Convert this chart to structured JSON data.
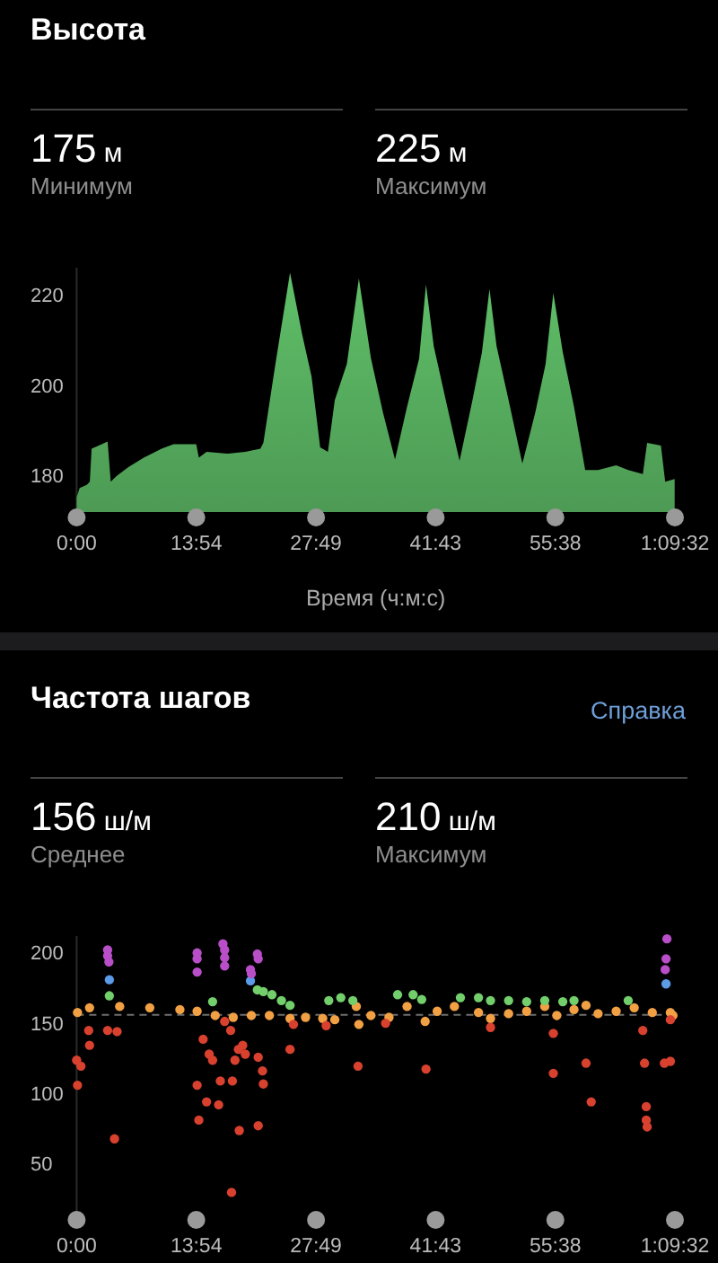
{
  "chart_data": [
    {
      "type": "area",
      "title": "Высота",
      "xlabel": "Время (ч:м:с)",
      "annotations": [
        "175 м",
        "Минимум",
        "225 м",
        "Максимум"
      ],
      "xlim": [
        0,
        69.53
      ],
      "xticks": [
        {
          "value": 0,
          "label": "0:00"
        },
        {
          "value": 13.9,
          "label": "13:54"
        },
        {
          "value": 27.82,
          "label": "27:49"
        },
        {
          "value": 41.72,
          "label": "41:43"
        },
        {
          "value": 55.63,
          "label": "55:38"
        },
        {
          "value": 69.53,
          "label": "1:09:32"
        }
      ],
      "ylim": [
        172,
        226
      ],
      "yticks": [
        180,
        200,
        220
      ],
      "grid": false,
      "series": [
        {
          "color": "#5fbf68",
          "x": [
            0,
            0.35,
            1.18,
            1.53,
            1.74,
            2.92,
            3.6,
            3.96,
            4.66,
            6.05,
            7.8,
            9.87,
            11.26,
            13.9,
            14.2,
            15.1,
            17.5,
            19.6,
            21.35,
            21.7,
            23.1,
            24.8,
            26.2,
            27.3,
            28.3,
            29.2,
            30.0,
            31.4,
            32.8,
            34.2,
            35.6,
            37.0,
            38.4,
            39.8,
            40.6,
            41.5,
            42.9,
            44.5,
            46.0,
            47.1,
            47.98,
            48.8,
            50.2,
            51.8,
            53.3,
            54.5,
            55.4,
            56.5,
            57.8,
            59.1,
            60.6,
            62.7,
            64.1,
            65.8,
            66.3,
            67.9,
            68.4,
            69.5
          ],
          "values": [
            175.3,
            177.3,
            178,
            178.7,
            186,
            187,
            187.6,
            178.7,
            180,
            182,
            184,
            186,
            187,
            187,
            184,
            185.3,
            184.9,
            185.3,
            186,
            187.3,
            204.7,
            224.9,
            211.3,
            202,
            186.3,
            185.3,
            196.7,
            204.7,
            223.6,
            206,
            194,
            183.6,
            195.3,
            205.9,
            222.3,
            208.7,
            196.7,
            183.3,
            196.7,
            207.3,
            221.3,
            208.7,
            196.7,
            182.7,
            194,
            204.7,
            220.4,
            207.3,
            195.3,
            181.3,
            181.3,
            182.3,
            181.3,
            180.4,
            187.3,
            186.7,
            178.7,
            179.3
          ]
        }
      ]
    },
    {
      "type": "scatter",
      "title": "Частота шагов",
      "annotations": [
        "156 ш/м",
        "Среднее",
        "210 ш/м",
        "Максимум",
        "Справка"
      ],
      "xlim": [
        0,
        69.53
      ],
      "xticks": [
        {
          "value": 0,
          "label": "0:00"
        },
        {
          "value": 13.9,
          "label": "13:54"
        },
        {
          "value": 27.82,
          "label": "27:49"
        },
        {
          "value": 41.72,
          "label": "41:43"
        },
        {
          "value": 55.63,
          "label": "55:38"
        },
        {
          "value": 69.53,
          "label": "1:09:32"
        }
      ],
      "ylim": [
        14,
        212
      ],
      "yticks": [
        50,
        100,
        150,
        200
      ],
      "grid": false,
      "marker": "circle",
      "ref_lines": [
        {
          "axis": "y",
          "value": 156,
          "color": "#6e6e6e",
          "line_style": "dashed"
        }
      ],
      "series": [
        {
          "color": "#f2a044",
          "x": [
            0.1,
            1.5,
            5.0,
            8.5,
            12.0,
            14.0,
            16.1,
            18.2,
            20.3,
            22.4,
            24.8,
            26.6,
            28.6,
            30.0,
            32.5,
            32.8,
            34.2,
            36.3,
            38.4,
            40.5,
            41.9,
            43.9,
            46.7,
            48.1,
            50.2,
            52.3,
            54.4,
            55.8,
            57.8,
            59.2,
            60.6,
            62.7,
            64.8,
            66.9,
            69.0,
            69.3
          ],
          "values": [
            157.6,
            161,
            161.9,
            161,
            159.7,
            158.5,
            155.5,
            154.2,
            155.5,
            155.5,
            153.4,
            154.2,
            153.4,
            152.5,
            161.9,
            149.2,
            155.5,
            154.2,
            161.9,
            151.3,
            158.5,
            161.9,
            157.6,
            153.4,
            156.8,
            158.5,
            161.9,
            155.5,
            159.7,
            162.7,
            156.8,
            158.5,
            161,
            157.6,
            157.6,
            155.5
          ]
        },
        {
          "color": "#d9412f",
          "x": [
            0,
            0.1,
            0.5,
            1.4,
            1.5,
            3.6,
            4.4,
            4.7,
            14.0,
            14.2,
            14.7,
            15.1,
            15.4,
            15.8,
            16.5,
            16.7,
            17.2,
            17.9,
            18.1,
            18.0,
            18.4,
            18.8,
            18.9,
            19.3,
            19.6,
            21.1,
            21.1,
            21.6,
            21.7,
            24.8,
            25.2,
            29.0,
            32.7,
            35.9,
            40.6,
            48.1,
            55.4,
            55.4,
            59.2,
            59.8,
            65.8,
            66.0,
            66.2,
            66.2,
            66.3,
            68.3,
            69.0,
            69.0
          ],
          "values": [
            123.7,
            105.9,
            119.5,
            144.9,
            134.3,
            144.9,
            67.8,
            144.1,
            105.9,
            81.1,
            138.6,
            94.1,
            128,
            123.7,
            92,
            108.9,
            151.3,
            144.9,
            108.9,
            29.7,
            123.7,
            131.4,
            73.7,
            134.3,
            128,
            125.8,
            77.1,
            116.1,
            106.8,
            131.4,
            149.2,
            148.3,
            119.5,
            150,
            117.4,
            147,
            142.8,
            114.4,
            121.6,
            94.1,
            144.9,
            121.6,
            90.7,
            81.1,
            76.3,
            121.6,
            122.9,
            152.5
          ]
        },
        {
          "color": "#72cf6c",
          "x": [
            3.8,
            15.8,
            21.0,
            21.7,
            22.7,
            23.8,
            24.8,
            29.3,
            30.7,
            32.1,
            37.3,
            39.1,
            40.1,
            44.6,
            46.7,
            48.1,
            50.2,
            52.3,
            54.4,
            56.5,
            57.8,
            64.1
          ],
          "values": [
            169.5,
            165.3,
            173.7,
            172.5,
            170.3,
            166.1,
            162.7,
            166.1,
            168.2,
            166.1,
            170.3,
            170.3,
            166.9,
            168.2,
            168.2,
            166.1,
            166.1,
            165.3,
            166.1,
            165.3,
            166.1,
            166.1
          ]
        },
        {
          "color": "#5b9be8",
          "x": [
            3.8,
            20.2,
            68.5
          ],
          "values": [
            180.9,
            180.1,
            178
          ]
        },
        {
          "color": "#b94fc8",
          "x": [
            3.6,
            3.6,
            3.75,
            14.0,
            14.0,
            14.0,
            17.0,
            17.2,
            17.2,
            17.2,
            20.2,
            20.3,
            21.0,
            21.1,
            68.6,
            68.5,
            68.4
          ],
          "values": [
            202.1,
            197.9,
            193.6,
            200,
            195.8,
            186.4,
            206.4,
            202.1,
            196.6,
            190.7,
            188.1,
            185.2,
            199.2,
            195.8,
            210,
            195.8,
            188.1
          ]
        }
      ]
    }
  ]
}
